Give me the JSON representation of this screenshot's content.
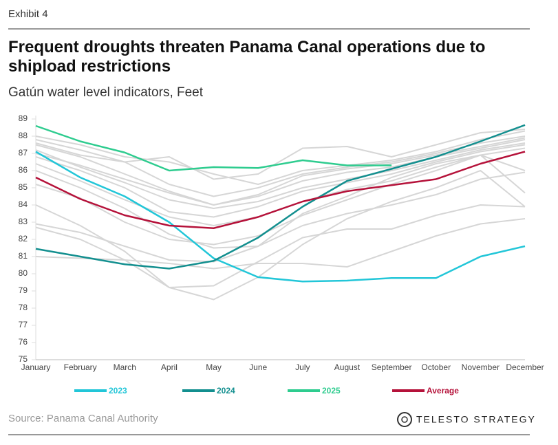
{
  "exhibit": "Exhibit 4",
  "source": "Source: Panama Canal Authority",
  "brand": "TELESTO STRATEGY",
  "chart_data": {
    "type": "line",
    "title": "Frequent droughts threaten Panama Canal operations due to shipload restrictions",
    "subtitle": "Gatún water level indicators, Feet",
    "categories": [
      "January",
      "February",
      "March",
      "April",
      "May",
      "June",
      "July",
      "August",
      "September",
      "October",
      "November",
      "December"
    ],
    "ylim": [
      75,
      89
    ],
    "yticks": [
      75,
      76,
      77,
      78,
      79,
      80,
      81,
      82,
      83,
      84,
      85,
      86,
      87,
      88,
      89
    ],
    "series": [
      {
        "color": "#d6d6d6",
        "values": [
          87.8,
          87.2,
          86.5,
          85.2,
          84.5,
          85.0,
          85.8,
          86.2,
          86.5,
          87.0,
          87.6,
          88.0
        ]
      },
      {
        "color": "#d6d6d6",
        "values": [
          87.5,
          86.8,
          85.8,
          84.8,
          84.0,
          84.5,
          85.4,
          85.9,
          86.2,
          86.8,
          87.3,
          87.8
        ]
      },
      {
        "color": "#d6d6d6",
        "values": [
          87.2,
          86.2,
          85.3,
          84.3,
          83.8,
          84.2,
          85.0,
          85.5,
          86.0,
          86.6,
          87.2,
          87.6
        ]
      },
      {
        "color": "#d6d6d6",
        "values": [
          88.0,
          87.5,
          86.8,
          86.5,
          85.8,
          85.2,
          86.0,
          86.3,
          86.6,
          87.1,
          87.8,
          88.3
        ]
      },
      {
        "color": "#d6d6d6",
        "values": [
          86.8,
          86.0,
          85.0,
          83.6,
          83.3,
          83.9,
          84.8,
          85.3,
          85.8,
          86.5,
          87.1,
          87.5
        ]
      },
      {
        "color": "#d6d6d6",
        "values": [
          86.4,
          85.4,
          84.3,
          83.3,
          82.8,
          83.3,
          84.2,
          84.9,
          85.4,
          86.2,
          86.9,
          87.3
        ]
      },
      {
        "color": "#d6d6d6",
        "values": [
          85.2,
          84.4,
          83.0,
          82.0,
          81.7,
          82.2,
          83.4,
          84.3,
          85.2,
          86.0,
          86.9,
          84.7
        ]
      },
      {
        "color": "#d6d6d6",
        "values": [
          84.0,
          82.8,
          81.3,
          79.2,
          78.5,
          79.8,
          81.7,
          83.2,
          84.2,
          85.0,
          86.0,
          83.9
        ]
      },
      {
        "color": "#d6d6d6",
        "values": [
          82.9,
          82.4,
          81.6,
          80.8,
          80.7,
          81.6,
          82.8,
          83.5,
          84.0,
          84.6,
          85.5,
          85.9
        ]
      },
      {
        "color": "#d6d6d6",
        "values": [
          82.7,
          82.0,
          80.8,
          79.2,
          79.3,
          80.7,
          82.1,
          82.6,
          82.6,
          83.4,
          84.0,
          83.9
        ]
      },
      {
        "color": "#d6d6d6",
        "values": [
          87.6,
          86.9,
          86.5,
          86.8,
          85.5,
          85.8,
          87.3,
          87.4,
          86.8,
          87.5,
          88.2,
          88.4
        ]
      },
      {
        "color": "#d6d6d6",
        "values": [
          87.0,
          86.3,
          85.5,
          84.7,
          84.0,
          84.6,
          85.7,
          86.1,
          86.4,
          86.9,
          87.4,
          87.9
        ]
      },
      {
        "color": "#d6d6d6",
        "values": [
          86.0,
          85.0,
          83.8,
          82.3,
          81.5,
          81.6,
          83.5,
          84.5,
          85.6,
          86.4,
          86.9,
          86.0
        ]
      },
      {
        "color": "#d6d6d6",
        "values": [
          81.0,
          80.9,
          80.8,
          80.6,
          80.3,
          80.6,
          80.6,
          80.4,
          81.3,
          82.2,
          82.9,
          83.2
        ]
      },
      {
        "name": "2023",
        "color": "#22c6d8",
        "values": [
          87.1,
          85.6,
          84.5,
          83.0,
          80.9,
          79.8,
          79.55,
          79.6,
          79.75,
          79.75,
          81.0,
          81.6
        ]
      },
      {
        "name": "2024",
        "color": "#138f8f",
        "values": [
          81.45,
          81.0,
          80.55,
          80.3,
          80.75,
          82.1,
          83.9,
          85.4,
          86.1,
          86.8,
          87.7,
          88.65
        ]
      },
      {
        "name": "2025",
        "color": "#2ecc8f",
        "values": [
          88.6,
          87.7,
          87.05,
          86.0,
          86.2,
          86.15,
          86.6,
          86.3,
          86.3,
          null,
          null,
          null
        ]
      },
      {
        "name": "Average",
        "color": "#b5123a",
        "values": [
          85.6,
          84.35,
          83.4,
          82.8,
          82.65,
          83.3,
          84.2,
          84.8,
          85.15,
          85.5,
          86.4,
          87.1
        ]
      }
    ]
  }
}
